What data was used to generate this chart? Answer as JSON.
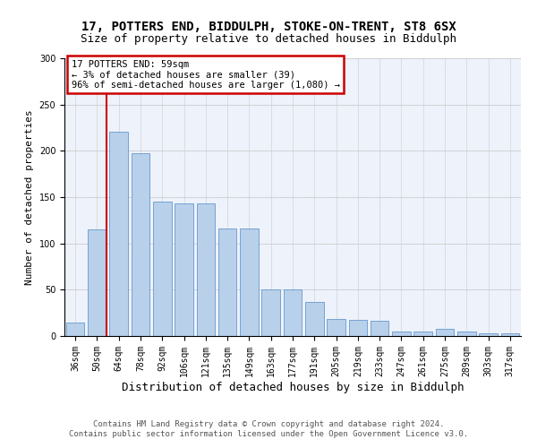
{
  "title_line1": "17, POTTERS END, BIDDULPH, STOKE-ON-TRENT, ST8 6SX",
  "title_line2": "Size of property relative to detached houses in Biddulph",
  "xlabel": "Distribution of detached houses by size in Biddulph",
  "ylabel": "Number of detached properties",
  "categories": [
    "36sqm",
    "50sqm",
    "64sqm",
    "78sqm",
    "92sqm",
    "106sqm",
    "121sqm",
    "135sqm",
    "149sqm",
    "163sqm",
    "177sqm",
    "191sqm",
    "205sqm",
    "219sqm",
    "233sqm",
    "247sqm",
    "261sqm",
    "275sqm",
    "289sqm",
    "303sqm",
    "317sqm"
  ],
  "values": [
    15,
    115,
    221,
    197,
    145,
    143,
    143,
    116,
    116,
    50,
    50,
    37,
    18,
    17,
    16,
    5,
    5,
    8,
    5,
    3,
    3
  ],
  "bar_color": "#b8d0ea",
  "bar_edge_color": "#6699cc",
  "vline_color": "#cc0000",
  "annotation_box_text": "17 POTTERS END: 59sqm\n← 3% of detached houses are smaller (39)\n96% of semi-detached houses are larger (1,080) →",
  "annotation_box_color": "#cc0000",
  "annotation_text_color": "#000000",
  "ylim": [
    0,
    300
  ],
  "yticks": [
    0,
    50,
    100,
    150,
    200,
    250,
    300
  ],
  "grid_color": "#cccccc",
  "background_color": "#eef2fb",
  "footer_line1": "Contains HM Land Registry data © Crown copyright and database right 2024.",
  "footer_line2": "Contains public sector information licensed under the Open Government Licence v3.0.",
  "title_fontsize": 10,
  "subtitle_fontsize": 9,
  "xlabel_fontsize": 9,
  "ylabel_fontsize": 8,
  "tick_fontsize": 7,
  "footer_fontsize": 6.5,
  "annotation_fontsize": 7.5
}
